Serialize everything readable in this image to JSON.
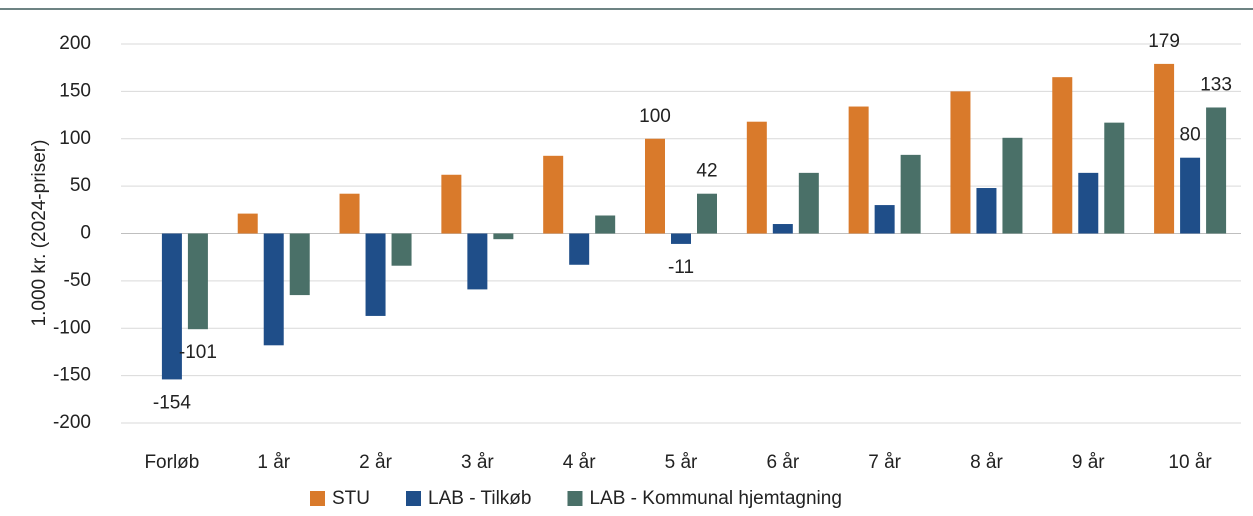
{
  "chart_data": {
    "type": "bar",
    "ylabel": "1.000 kr. (2024-priser)",
    "categories": [
      "Forløb",
      "1 år",
      "2 år",
      "3 år",
      "4 år",
      "5 år",
      "6 år",
      "7 år",
      "8 år",
      "9 år",
      "10 år"
    ],
    "series": [
      {
        "name": "STU",
        "color": "#d97a2b",
        "values": [
          null,
          21,
          42,
          62,
          82,
          100,
          118,
          134,
          150,
          165,
          179
        ],
        "value_labels": [
          null,
          null,
          null,
          null,
          null,
          "100",
          null,
          null,
          null,
          null,
          "179"
        ]
      },
      {
        "name": "LAB - Tilkøb",
        "color": "#1f4e89",
        "values": [
          -154,
          -118,
          -87,
          -59,
          -33,
          -11,
          10,
          30,
          48,
          64,
          80
        ],
        "value_labels": [
          "-154",
          null,
          null,
          null,
          null,
          "-11",
          null,
          null,
          null,
          null,
          "80"
        ]
      },
      {
        "name": "LAB - Kommunal hjemtagning",
        "color": "#4a7068",
        "values": [
          -101,
          -65,
          -34,
          -6,
          19,
          42,
          64,
          83,
          101,
          117,
          133
        ],
        "value_labels": [
          "-101",
          null,
          null,
          null,
          null,
          "42",
          null,
          null,
          null,
          null,
          "133"
        ]
      }
    ],
    "ylim": [
      -200,
      200
    ],
    "yticks": [
      -200,
      -150,
      -100,
      -50,
      0,
      50,
      100,
      150,
      200
    ],
    "grid": true
  }
}
